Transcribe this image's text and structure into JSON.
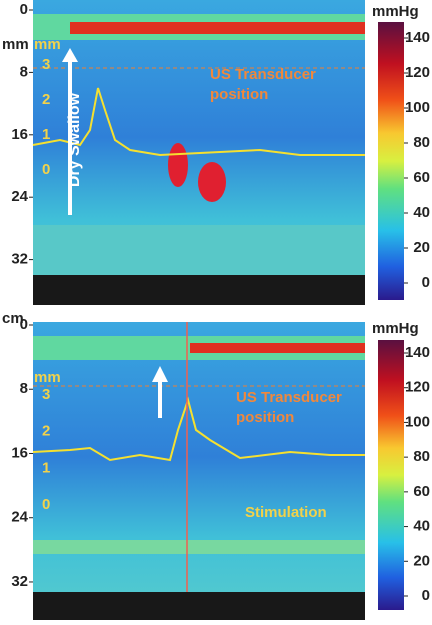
{
  "panels": [
    {
      "depth_unit": "mm",
      "depth_ticks": [
        0,
        8,
        16,
        24,
        32
      ],
      "pressure_unit": "mmHg",
      "colorbar_ticks": [
        0,
        20,
        40,
        60,
        80,
        100,
        120,
        140
      ],
      "diameter_unit": "mm",
      "diameter_ticks": [
        0,
        1,
        2,
        3
      ],
      "swallow_label": "Dry Swallow",
      "transducer_label": [
        "US Transducer",
        "position"
      ]
    },
    {
      "depth_unit": "cm",
      "depth_ticks": [
        0,
        8,
        16,
        24,
        32
      ],
      "pressure_unit": "mmHg",
      "colorbar_ticks": [
        0,
        20,
        40,
        60,
        80,
        100,
        120,
        140
      ],
      "diameter_unit": "mm",
      "diameter_ticks": [
        0,
        1,
        2,
        3
      ],
      "transducer_label": [
        "US Transducer",
        "position"
      ],
      "stimulation_label": "Stimulation"
    }
  ]
}
